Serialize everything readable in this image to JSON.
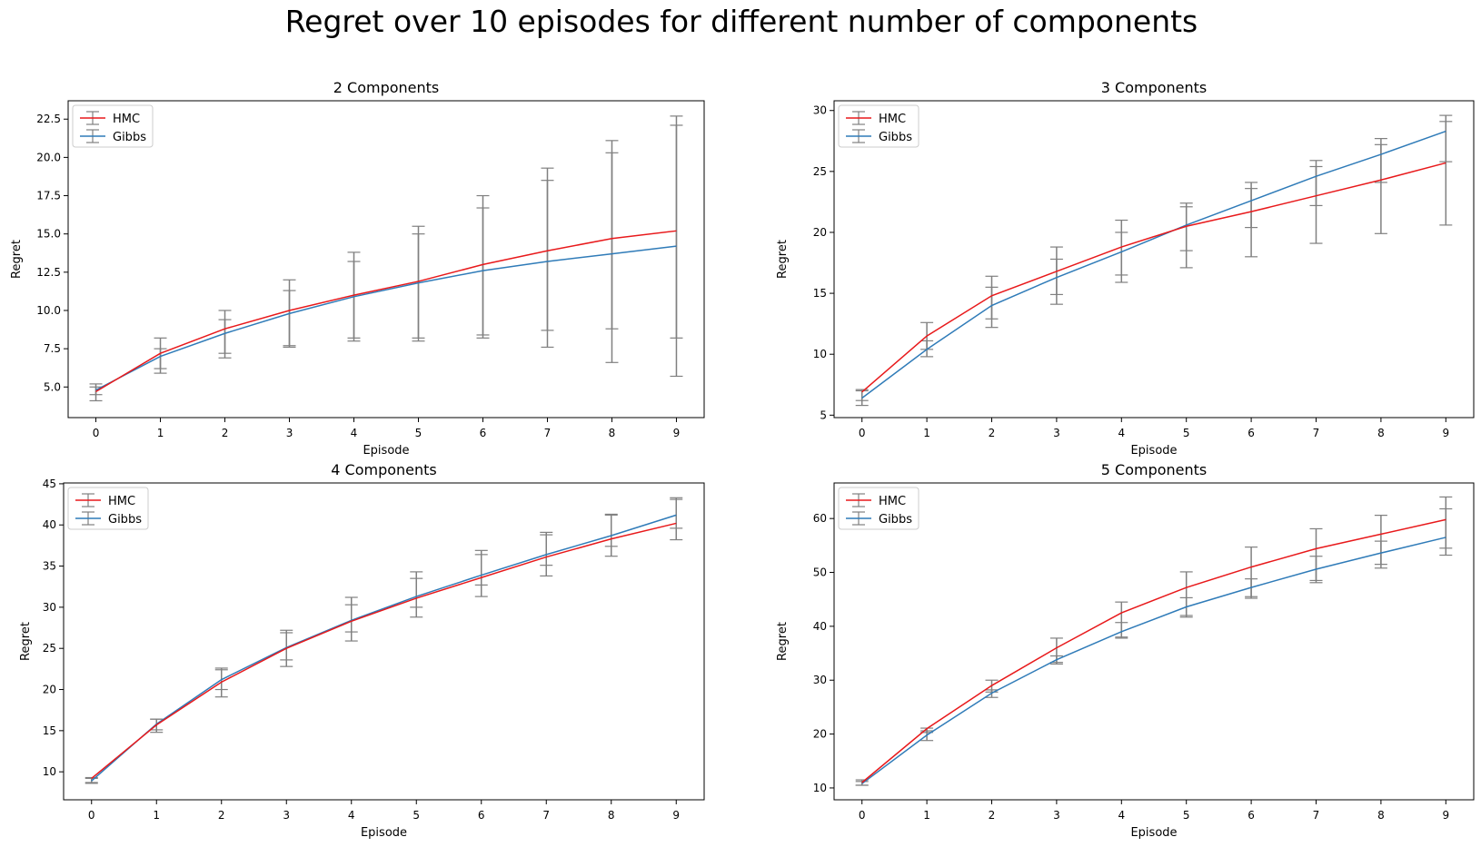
{
  "figure_title": "Regret over 10 episodes for different number of components",
  "colors": {
    "HMC": "#e8191b",
    "Gibbs": "#2f7bb8",
    "errorbar": "#808080"
  },
  "chart_data": [
    {
      "type": "line",
      "title": "2 Components",
      "xlabel": "Episode",
      "ylabel": "Regret",
      "x": [
        0,
        1,
        2,
        3,
        4,
        5,
        6,
        7,
        8,
        9
      ],
      "xticks": [
        "0",
        "1",
        "2",
        "3",
        "4",
        "5",
        "6",
        "7",
        "8",
        "9"
      ],
      "ylim": [
        3.0,
        23.7
      ],
      "yticks": [
        5.0,
        7.5,
        10.0,
        12.5,
        15.0,
        17.5,
        20.0,
        22.5
      ],
      "ytick_labels": [
        "5.0",
        "7.5",
        "10.0",
        "12.5",
        "15.0",
        "17.5",
        "20.0",
        "22.5"
      ],
      "legend": "upper-left",
      "series": [
        {
          "name": "HMC",
          "values": [
            4.7,
            7.2,
            8.8,
            10.0,
            11.0,
            11.9,
            13.0,
            13.9,
            14.7,
            15.2
          ],
          "err_low": [
            4.1,
            6.2,
            7.2,
            7.7,
            8.2,
            8.2,
            8.4,
            7.6,
            6.6,
            5.7
          ],
          "err_high": [
            5.2,
            8.2,
            10.0,
            12.0,
            13.8,
            15.5,
            17.5,
            19.3,
            21.1,
            22.7
          ]
        },
        {
          "name": "Gibbs",
          "values": [
            4.8,
            7.0,
            8.5,
            9.8,
            10.9,
            11.8,
            12.6,
            13.2,
            13.7,
            14.2
          ],
          "err_low": [
            4.5,
            5.9,
            6.9,
            7.6,
            8.0,
            8.0,
            8.2,
            8.7,
            8.8,
            8.2
          ],
          "err_high": [
            5.0,
            7.5,
            9.4,
            11.3,
            13.2,
            15.0,
            16.7,
            18.5,
            20.3,
            22.1
          ]
        }
      ]
    },
    {
      "type": "line",
      "title": "3 Components",
      "xlabel": "Episode",
      "ylabel": "Regret",
      "x": [
        0,
        1,
        2,
        3,
        4,
        5,
        6,
        7,
        8,
        9
      ],
      "xticks": [
        "0",
        "1",
        "2",
        "3",
        "4",
        "5",
        "6",
        "7",
        "8",
        "9"
      ],
      "ylim": [
        4.8,
        30.8
      ],
      "yticks": [
        5,
        10,
        15,
        20,
        25,
        30
      ],
      "ytick_labels": [
        "5",
        "10",
        "15",
        "20",
        "25",
        "30"
      ],
      "legend": "upper-left",
      "series": [
        {
          "name": "HMC",
          "values": [
            6.9,
            11.5,
            14.8,
            16.8,
            18.8,
            20.5,
            21.7,
            23.0,
            24.3,
            25.7
          ],
          "err_low": [
            6.2,
            10.4,
            12.9,
            14.9,
            16.5,
            18.5,
            20.4,
            22.2,
            24.1,
            25.8
          ],
          "err_high": [
            7.1,
            12.6,
            16.4,
            18.8,
            21.0,
            22.4,
            24.1,
            25.4,
            27.2,
            29.6
          ]
        },
        {
          "name": "Gibbs",
          "values": [
            6.4,
            10.4,
            14.0,
            16.3,
            18.4,
            20.6,
            22.6,
            24.6,
            26.4,
            28.3
          ],
          "err_low": [
            5.8,
            9.8,
            12.2,
            14.1,
            15.9,
            17.1,
            18.0,
            19.1,
            19.9,
            20.6
          ],
          "err_high": [
            7.0,
            11.1,
            15.5,
            17.8,
            20.0,
            22.1,
            23.6,
            25.9,
            27.7,
            29.1
          ]
        }
      ]
    },
    {
      "type": "line",
      "title": "4 Components",
      "xlabel": "Episode",
      "ylabel": "Regret",
      "x": [
        0,
        1,
        2,
        3,
        4,
        5,
        6,
        7,
        8,
        9
      ],
      "xticks": [
        "0",
        "1",
        "2",
        "3",
        "4",
        "5",
        "6",
        "7",
        "8",
        "9"
      ],
      "ylim": [
        6.6,
        45.1
      ],
      "yticks": [
        10,
        15,
        20,
        25,
        30,
        35,
        40,
        45
      ],
      "ytick_labels": [
        "10",
        "15",
        "20",
        "25",
        "30",
        "35",
        "40",
        "45"
      ],
      "legend": "upper-left",
      "series": [
        {
          "name": "HMC",
          "values": [
            9.2,
            15.7,
            20.9,
            25.0,
            28.3,
            31.1,
            33.6,
            36.1,
            38.3,
            40.2
          ],
          "err_low": [
            8.6,
            14.8,
            19.1,
            22.8,
            25.9,
            28.8,
            31.3,
            33.8,
            36.2,
            38.2
          ],
          "err_high": [
            9.3,
            16.4,
            22.6,
            27.2,
            31.2,
            34.3,
            36.9,
            39.1,
            41.3,
            43.3
          ]
        },
        {
          "name": "Gibbs",
          "values": [
            8.9,
            15.8,
            21.2,
            25.1,
            28.4,
            31.3,
            33.9,
            36.4,
            38.7,
            41.2
          ],
          "err_low": [
            8.7,
            15.1,
            20.0,
            23.6,
            27.0,
            30.0,
            32.7,
            35.1,
            37.4,
            39.6
          ],
          "err_high": [
            9.2,
            16.4,
            22.4,
            26.9,
            30.3,
            33.5,
            36.4,
            38.8,
            41.2,
            43.1
          ]
        }
      ]
    },
    {
      "type": "line",
      "title": "5 Components",
      "xlabel": "Episode",
      "ylabel": "Regret",
      "x": [
        0,
        1,
        2,
        3,
        4,
        5,
        6,
        7,
        8,
        9
      ],
      "xticks": [
        "0",
        "1",
        "2",
        "3",
        "4",
        "5",
        "6",
        "7",
        "8",
        "9"
      ],
      "ylim": [
        7.8,
        66.6
      ],
      "yticks": [
        10,
        20,
        30,
        40,
        50,
        60
      ],
      "ytick_labels": [
        "10",
        "20",
        "30",
        "40",
        "50",
        "60"
      ],
      "legend": "upper-left",
      "series": [
        {
          "name": "HMC",
          "values": [
            11.0,
            21.0,
            29.0,
            36.0,
            42.5,
            47.2,
            51.0,
            54.4,
            57.1,
            59.8
          ],
          "err_low": [
            10.5,
            20.3,
            27.8,
            33.3,
            38.0,
            41.7,
            45.2,
            48.1,
            50.8,
            53.2
          ],
          "err_high": [
            11.5,
            21.1,
            30.0,
            37.8,
            44.5,
            50.1,
            54.7,
            58.1,
            60.6,
            64.0
          ]
        },
        {
          "name": "Gibbs",
          "values": [
            10.8,
            19.8,
            27.6,
            33.8,
            39.0,
            43.6,
            47.2,
            50.6,
            53.6,
            56.5
          ],
          "err_low": [
            10.5,
            18.8,
            26.8,
            33.0,
            37.8,
            42.0,
            45.5,
            48.5,
            51.5,
            54.5
          ],
          "err_high": [
            11.2,
            20.6,
            28.2,
            34.5,
            40.7,
            45.3,
            48.8,
            53.0,
            55.8,
            61.8
          ]
        }
      ]
    }
  ]
}
